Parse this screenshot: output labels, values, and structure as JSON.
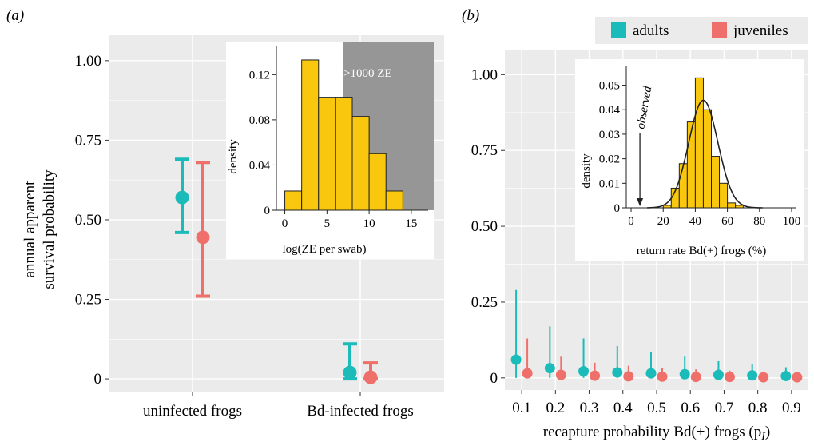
{
  "colors": {
    "adults": "#1bbbb9",
    "juveniles": "#ef6f6a",
    "panel_bg": "#ebebeb",
    "grid": "#ffffff",
    "hist_fill": "#f9c80e",
    "shade": "#969696",
    "curve": "#222222"
  },
  "chart_data": [
    {
      "type": "scatter",
      "panel_label": "(a)",
      "ylabel": "annual apparent survival probability",
      "categories": [
        "uninfected frogs",
        "Bd-infected frogs"
      ],
      "ylim": [
        -0.04,
        1.08
      ],
      "y_ticks": [
        0,
        0.25,
        0.5,
        0.75,
        1.0
      ],
      "y_tick_labels": [
        "0",
        "0.25",
        "0.50",
        "0.75",
        "1.00"
      ],
      "grid": true,
      "series": [
        {
          "name": "adults",
          "values": [
            0.57,
            0.02
          ],
          "lower": [
            0.46,
            0.0
          ],
          "upper": [
            0.69,
            0.11
          ]
        },
        {
          "name": "juveniles",
          "values": [
            0.445,
            0.005
          ],
          "lower": [
            0.26,
            0.0
          ],
          "upper": [
            0.68,
            0.05
          ]
        }
      ],
      "inset": {
        "type": "bar",
        "xlabel": "log(ZE per swab)",
        "ylabel": "density",
        "bins": [
          0,
          2,
          4,
          6,
          8,
          10,
          12,
          14
        ],
        "values": [
          0.017,
          0.133,
          0.1,
          0.1,
          0.083,
          0.05,
          0.017
        ],
        "xlim": [
          -1,
          17
        ],
        "ylim": [
          0,
          0.145
        ],
        "x_ticks": [
          0,
          5,
          10,
          15
        ],
        "y_ticks": [
          0,
          0.04,
          0.08,
          0.12
        ],
        "y_tick_labels": [
          "0",
          "0.04",
          "0.08",
          "0.12"
        ],
        "shade_from": 6.9,
        "annotation": ">1000 ZE"
      }
    },
    {
      "type": "scatter",
      "panel_label": "(b)",
      "xlabel": "recapture probability Bd(+) frogs (p",
      "xlabel_sub": "I",
      "xlabel_end": ")",
      "categories": [
        "0.1",
        "0.2",
        "0.3",
        "0.4",
        "0.5",
        "0.6",
        "0.7",
        "0.8",
        "0.9"
      ],
      "ylim": [
        -0.04,
        1.08
      ],
      "y_ticks": [
        0,
        0.25,
        0.5,
        0.75,
        1.0
      ],
      "y_tick_labels": [
        "0",
        "0.25",
        "0.50",
        "0.75",
        "1.00"
      ],
      "grid": true,
      "legend": {
        "placement": "top",
        "entries": [
          "adults",
          "juveniles"
        ]
      },
      "series": [
        {
          "name": "adults",
          "values": [
            0.06,
            0.032,
            0.022,
            0.018,
            0.015,
            0.012,
            0.01,
            0.008,
            0.006
          ],
          "upper": [
            0.29,
            0.17,
            0.13,
            0.105,
            0.085,
            0.07,
            0.055,
            0.045,
            0.035
          ]
        },
        {
          "name": "juveniles",
          "values": [
            0.015,
            0.01,
            0.007,
            0.005,
            0.004,
            0.003,
            0.003,
            0.002,
            0.002
          ],
          "upper": [
            0.13,
            0.07,
            0.05,
            0.04,
            0.032,
            0.028,
            0.024,
            0.02,
            0.018
          ]
        }
      ],
      "inset": {
        "type": "bar",
        "xlabel": "return rate Bd(+) frogs (%)",
        "ylabel": "density",
        "bins": [
          20,
          25,
          30,
          35,
          40,
          45,
          50,
          55,
          60,
          65,
          70
        ],
        "values": [
          0.001,
          0.008,
          0.018,
          0.035,
          0.053,
          0.04,
          0.021,
          0.01,
          0.002,
          0.001
        ],
        "xlim": [
          -3,
          103
        ],
        "ylim": [
          0,
          0.058
        ],
        "x_ticks": [
          0,
          20,
          40,
          60,
          80,
          100
        ],
        "y_ticks": [
          0,
          0.01,
          0.02,
          0.03,
          0.04,
          0.05
        ],
        "y_tick_labels": [
          "0",
          "0.01",
          "0.02",
          "0.03",
          "0.04",
          "0.05"
        ],
        "curve": {
          "mean": 45,
          "sd": 9.1
        },
        "observed_x": 5.5,
        "annotation": "observed"
      }
    }
  ]
}
